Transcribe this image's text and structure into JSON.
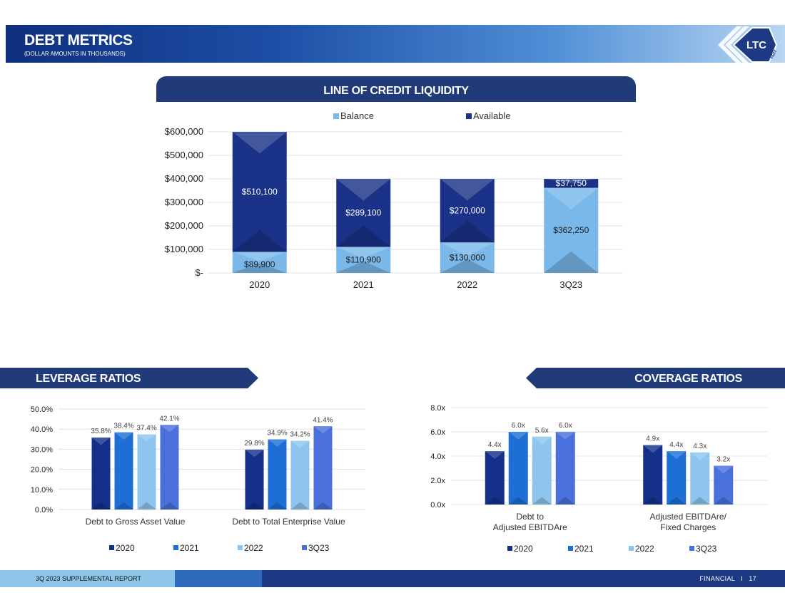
{
  "header": {
    "title": "DEBT METRICS",
    "subtitle": "(DOLLAR AMOUNTS IN THOUSANDS)",
    "logo_text": "LTC",
    "logo_sub": "REIT"
  },
  "footer": {
    "left": "3Q 2023 SUPPLEMENTAL REPORT",
    "section": "FINANCIAL",
    "separator": "I",
    "page": "17"
  },
  "colors": {
    "y2020": "#14308a",
    "y2021": "#1d6fd6",
    "y2022": "#8fc4ee",
    "y3q23": "#4a70dc",
    "balance": "#7ab8ea",
    "available": "#1a3288",
    "banner": "#213a7a"
  },
  "chart_data": [
    {
      "id": "loc",
      "type": "bar",
      "stacked": true,
      "title": "LINE OF CREDIT LIQUIDITY",
      "categories": [
        "2020",
        "2021",
        "2022",
        "3Q23"
      ],
      "series": [
        {
          "name": "Balance",
          "values": [
            89900,
            110900,
            130000,
            362250
          ],
          "labels": [
            "$89,900",
            "$110,900",
            "$130,000",
            "$362,250"
          ]
        },
        {
          "name": "Available",
          "values": [
            510100,
            289100,
            270000,
            37750
          ],
          "labels": [
            "$510,100",
            "$289,100",
            "$270,000",
            "$37,750"
          ]
        }
      ],
      "ylim": [
        0,
        600000
      ],
      "yticks": [
        0,
        100000,
        200000,
        300000,
        400000,
        500000,
        600000
      ],
      "ytick_labels": [
        "$-",
        "$100,000",
        "$200,000",
        "$300,000",
        "$400,000",
        "$500,000",
        "$600,000"
      ],
      "legend": "top"
    },
    {
      "id": "leverage",
      "type": "bar",
      "title": "LEVERAGE RATIOS",
      "categories": [
        "Debt to Gross Asset Value",
        "Debt to Total Enterprise Value"
      ],
      "series": [
        {
          "name": "2020",
          "values": [
            35.8,
            29.8
          ],
          "labels": [
            "35.8%",
            "29.8%"
          ]
        },
        {
          "name": "2021",
          "values": [
            38.4,
            34.9
          ],
          "labels": [
            "38.4%",
            "34.9%"
          ]
        },
        {
          "name": "2022",
          "values": [
            37.4,
            34.2
          ],
          "labels": [
            "37.4%",
            "34.2%"
          ]
        },
        {
          "name": "3Q23",
          "values": [
            42.1,
            41.4
          ],
          "labels": [
            "42.1%",
            "41.4%"
          ]
        }
      ],
      "ylim": [
        0,
        50
      ],
      "yticks": [
        0,
        10,
        20,
        30,
        40,
        50
      ],
      "ytick_labels": [
        "0.0%",
        "10.0%",
        "20.0%",
        "30.0%",
        "40.0%",
        "50.0%"
      ],
      "legend": "bottom"
    },
    {
      "id": "coverage",
      "type": "bar",
      "title": "COVERAGE RATIOS",
      "categories": [
        "Debt to\nAdjusted EBITDAre",
        "Adjusted EBITDAre/\nFixed Charges"
      ],
      "series": [
        {
          "name": "2020",
          "values": [
            4.4,
            4.9
          ],
          "labels": [
            "4.4x",
            "4.9x"
          ]
        },
        {
          "name": "2021",
          "values": [
            6.0,
            4.4
          ],
          "labels": [
            "6.0x",
            "4.4x"
          ]
        },
        {
          "name": "2022",
          "values": [
            5.6,
            4.3
          ],
          "labels": [
            "5.6x",
            "4.3x"
          ]
        },
        {
          "name": "3Q23",
          "values": [
            6.0,
            3.2
          ],
          "labels": [
            "6.0x",
            "3.2x"
          ]
        }
      ],
      "ylim": [
        0,
        8
      ],
      "yticks": [
        0,
        2,
        4,
        6,
        8
      ],
      "ytick_labels": [
        "0.0x",
        "2.0x",
        "4.0x",
        "6.0x",
        "8.0x"
      ],
      "legend": "bottom"
    }
  ]
}
